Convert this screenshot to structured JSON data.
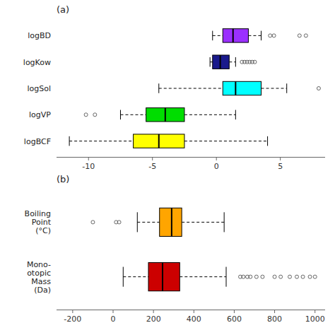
{
  "chart_data": [
    {
      "type": "box",
      "orientation": "horizontal",
      "title": "(a)",
      "grid": false,
      "categories": [
        "logBD",
        "logKow",
        "logSol",
        "logVP",
        "logBCF"
      ],
      "colors": [
        "#9B30FF",
        "#1A1A8C",
        "#00FFFF",
        "#00DD00",
        "#FFFF00"
      ],
      "xlim": [
        -12.5,
        8.5
      ],
      "xticks": [
        -10,
        -5,
        0,
        5
      ],
      "boxes": [
        {
          "q1": 0.5,
          "med": 1.3,
          "q3": 2.5,
          "whislo": -0.3,
          "whishi": 3.5,
          "fliers_high": [
            4.2,
            4.5,
            6.5,
            7.0
          ],
          "fliers_low": []
        },
        {
          "q1": -0.3,
          "med": 0.3,
          "q3": 1.0,
          "whislo": -0.5,
          "whishi": 1.5,
          "fliers_high": [
            2.0,
            2.2,
            2.4,
            2.6,
            2.8,
            3.0
          ],
          "fliers_low": []
        },
        {
          "q1": 0.5,
          "med": 1.5,
          "q3": 3.5,
          "whislo": -4.5,
          "whishi": 5.5,
          "fliers_high": [
            8.0
          ],
          "fliers_low": []
        },
        {
          "q1": -5.5,
          "med": -4.0,
          "q3": -2.5,
          "whislo": -7.5,
          "whishi": 1.5,
          "fliers_high": [],
          "fliers_low": [
            -9.5,
            -10.2
          ]
        },
        {
          "q1": -6.5,
          "med": -4.5,
          "q3": -2.5,
          "whislo": -11.5,
          "whishi": 4.0,
          "fliers_high": [],
          "fliers_low": []
        }
      ]
    },
    {
      "type": "box",
      "orientation": "horizontal",
      "title": "(b)",
      "grid": false,
      "categories": [
        "Boiling\nPoint\n(°C)",
        "Mono-\notopic\nMass\n(Da)"
      ],
      "colors": [
        "#FFA500",
        "#CC0000"
      ],
      "xlim": [
        -280,
        1050
      ],
      "xticks": [
        -200,
        0,
        200,
        400,
        600,
        800,
        1000
      ],
      "boxes": [
        {
          "q1": 230,
          "med": 290,
          "q3": 340,
          "whislo": 120,
          "whishi": 550,
          "fliers_high": [],
          "fliers_low": [
            -100,
            15,
            30
          ]
        },
        {
          "q1": 175,
          "med": 245,
          "q3": 330,
          "whislo": 50,
          "whishi": 560,
          "fliers_high": [
            630,
            645,
            665,
            680,
            710,
            740,
            800,
            830,
            875,
            910,
            940,
            975,
            1000
          ],
          "fliers_low": []
        }
      ]
    }
  ]
}
